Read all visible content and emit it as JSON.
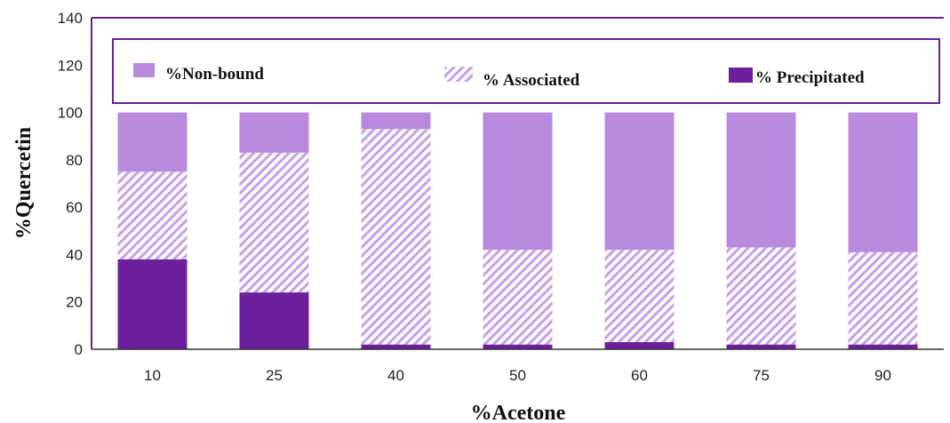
{
  "chart_data": {
    "type": "bar",
    "stacked": true,
    "xlabel": "%Acetone",
    "ylabel": "%Quercetin",
    "categories": [
      "10",
      "25",
      "40",
      "50",
      "60",
      "75",
      "90"
    ],
    "ylim": [
      0,
      140
    ],
    "yticks": [
      "0",
      "20",
      "40",
      "60",
      "80",
      "100",
      "120",
      "140"
    ],
    "grid": false,
    "legend_position": "top",
    "series": [
      {
        "name": "% Precipitated",
        "values": [
          38,
          24,
          2,
          2,
          3,
          2,
          2
        ],
        "color": "#6b1f9a",
        "fill": "solid"
      },
      {
        "name": "% Associated",
        "values": [
          37,
          59,
          91,
          40,
          39,
          41,
          39
        ],
        "color": "#c7a3e6",
        "fill": "hatched"
      },
      {
        "name": "%Non-bound",
        "values": [
          25,
          17,
          7,
          58,
          58,
          57,
          59
        ],
        "color": "#b88ade",
        "fill": "solid"
      }
    ],
    "legend": [
      "%Non-bound",
      "% Associated",
      "% Precipitated"
    ]
  }
}
